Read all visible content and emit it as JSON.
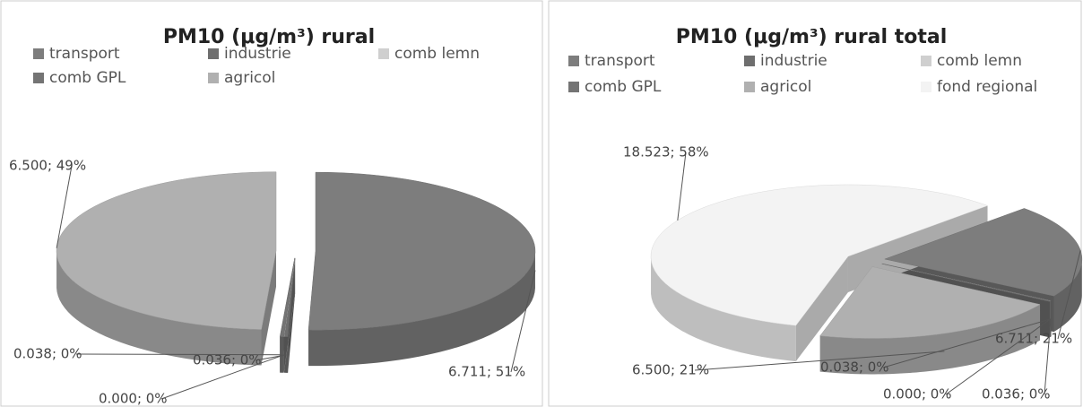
{
  "chart_data": [
    {
      "type": "pie",
      "title": "PM10 (μg/m³) rural",
      "categories": [
        "transport",
        "industrie",
        "comb lemn",
        "comb GPL",
        "agricol"
      ],
      "values": [
        6.711,
        0.036,
        0.0,
        0.038,
        6.5
      ],
      "value_labels": [
        "6.711; 51%",
        "0.036; 0%",
        "0.000; 0%",
        "0.038; 0%",
        "6.500; 49%"
      ],
      "colors": [
        "#7d7d7d",
        "#6e6e6e",
        "#cfcfcf",
        "#747474",
        "#b0b0b0"
      ]
    },
    {
      "type": "pie",
      "title": "PM10 (μg/m³) rural total",
      "categories": [
        "transport",
        "industrie",
        "comb lemn",
        "comb GPL",
        "agricol",
        "fond regional"
      ],
      "values": [
        6.711,
        0.036,
        0.0,
        0.038,
        6.5,
        18.523
      ],
      "value_labels": [
        "6.711; 21%",
        "0.036; 0%",
        "0.000; 0%",
        "0.038; 0%",
        "6.500; 21%",
        "18.523; 58%"
      ],
      "colors": [
        "#7d7d7d",
        "#6e6e6e",
        "#cfcfcf",
        "#747474",
        "#b0b0b0",
        "#f3f3f3"
      ]
    }
  ]
}
